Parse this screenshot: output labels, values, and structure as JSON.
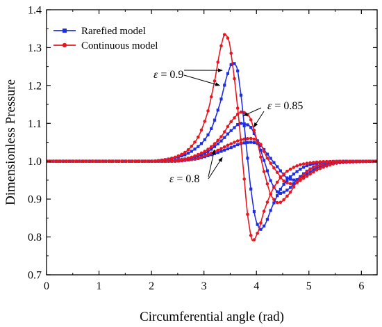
{
  "chart_data": {
    "type": "line",
    "xlabel": "Circumferential angle (rad)",
    "ylabel": "Dimensionless Pressure",
    "xlim": [
      0,
      6.3
    ],
    "ylim": [
      0.7,
      1.4
    ],
    "xticks": [
      "0",
      "1",
      "2",
      "3",
      "4",
      "5",
      "6"
    ],
    "yticks": [
      "0.7",
      "0.8",
      "0.9",
      "1.0",
      "1.1",
      "1.2",
      "1.3",
      "1.4"
    ],
    "grid": false,
    "legend": {
      "position": "top-left",
      "entries": [
        {
          "label": "Rarefied model",
          "color": "#1f2ee0",
          "marker": "square"
        },
        {
          "label": "Continuous model",
          "color": "#e8161e",
          "marker": "circle"
        }
      ]
    },
    "annotations": [
      {
        "symbol": "ε",
        "text": " = 0.9",
        "points_to": [
          [
            3.35,
            1.24
          ],
          [
            3.3,
            1.2
          ]
        ]
      },
      {
        "symbol": "ε",
        "text": " = 0.85",
        "points_to": [
          [
            3.75,
            1.12
          ],
          [
            3.95,
            1.09
          ]
        ]
      },
      {
        "symbol": "ε",
        "text": " = 0.8",
        "points_to": [
          [
            3.2,
            1.03
          ],
          [
            3.35,
            1.01
          ]
        ]
      }
    ],
    "series": [
      {
        "name": "Rarefied model",
        "group": "ε = 0.9",
        "color": "#1f2ee0",
        "marker": "square",
        "points": [
          [
            0,
            1.0
          ],
          [
            2.0,
            1.0
          ],
          [
            2.3,
            1.005
          ],
          [
            2.6,
            1.015
          ],
          [
            2.9,
            1.04
          ],
          [
            3.1,
            1.075
          ],
          [
            3.3,
            1.15
          ],
          [
            3.45,
            1.23
          ],
          [
            3.55,
            1.26
          ],
          [
            3.62,
            1.25
          ],
          [
            3.7,
            1.18
          ],
          [
            3.8,
            1.05
          ],
          [
            3.9,
            0.92
          ],
          [
            4.0,
            0.84
          ],
          [
            4.08,
            0.82
          ],
          [
            4.15,
            0.83
          ],
          [
            4.3,
            0.88
          ],
          [
            4.5,
            0.935
          ],
          [
            4.7,
            0.965
          ],
          [
            5.0,
            0.99
          ],
          [
            5.3,
            0.998
          ],
          [
            5.6,
            1.0
          ],
          [
            6.3,
            1.0
          ]
        ]
      },
      {
        "name": "Continuous model",
        "group": "ε = 0.9",
        "color": "#e8161e",
        "marker": "circle",
        "points": [
          [
            0,
            1.0
          ],
          [
            2.0,
            1.0
          ],
          [
            2.3,
            1.005
          ],
          [
            2.6,
            1.02
          ],
          [
            2.85,
            1.055
          ],
          [
            3.05,
            1.12
          ],
          [
            3.2,
            1.21
          ],
          [
            3.32,
            1.3
          ],
          [
            3.4,
            1.335
          ],
          [
            3.47,
            1.32
          ],
          [
            3.55,
            1.25
          ],
          [
            3.65,
            1.13
          ],
          [
            3.75,
            0.98
          ],
          [
            3.85,
            0.84
          ],
          [
            3.93,
            0.79
          ],
          [
            4.02,
            0.81
          ],
          [
            4.15,
            0.87
          ],
          [
            4.35,
            0.935
          ],
          [
            4.6,
            0.975
          ],
          [
            4.9,
            0.993
          ],
          [
            5.3,
            0.999
          ],
          [
            6.3,
            1.0
          ]
        ]
      },
      {
        "name": "Rarefied model",
        "group": "ε = 0.85",
        "color": "#1f2ee0",
        "marker": "square",
        "points": [
          [
            0,
            1.0
          ],
          [
            2.2,
            1.0
          ],
          [
            2.6,
            1.005
          ],
          [
            3.0,
            1.02
          ],
          [
            3.3,
            1.05
          ],
          [
            3.55,
            1.085
          ],
          [
            3.7,
            1.1
          ],
          [
            3.85,
            1.095
          ],
          [
            4.0,
            1.06
          ],
          [
            4.15,
            1.0
          ],
          [
            4.3,
            0.94
          ],
          [
            4.45,
            0.915
          ],
          [
            4.6,
            0.925
          ],
          [
            4.8,
            0.955
          ],
          [
            5.1,
            0.985
          ],
          [
            5.5,
            0.998
          ],
          [
            6.3,
            1.0
          ]
        ]
      },
      {
        "name": "Continuous model",
        "group": "ε = 0.85",
        "color": "#e8161e",
        "marker": "circle",
        "points": [
          [
            0,
            1.0
          ],
          [
            2.2,
            1.0
          ],
          [
            2.6,
            1.005
          ],
          [
            3.0,
            1.025
          ],
          [
            3.3,
            1.06
          ],
          [
            3.55,
            1.11
          ],
          [
            3.72,
            1.13
          ],
          [
            3.85,
            1.12
          ],
          [
            4.0,
            1.06
          ],
          [
            4.15,
            0.97
          ],
          [
            4.3,
            0.905
          ],
          [
            4.42,
            0.89
          ],
          [
            4.6,
            0.91
          ],
          [
            4.8,
            0.95
          ],
          [
            5.1,
            0.985
          ],
          [
            5.5,
            0.998
          ],
          [
            6.3,
            1.0
          ]
        ]
      },
      {
        "name": "Rarefied model",
        "group": "ε = 0.8",
        "color": "#1f2ee0",
        "marker": "square",
        "points": [
          [
            0,
            1.0
          ],
          [
            2.4,
            1.0
          ],
          [
            2.8,
            1.005
          ],
          [
            3.2,
            1.02
          ],
          [
            3.5,
            1.035
          ],
          [
            3.75,
            1.048
          ],
          [
            3.9,
            1.05
          ],
          [
            4.05,
            1.045
          ],
          [
            4.2,
            1.02
          ],
          [
            4.4,
            0.985
          ],
          [
            4.6,
            0.955
          ],
          [
            4.75,
            0.95
          ],
          [
            4.95,
            0.965
          ],
          [
            5.2,
            0.985
          ],
          [
            5.6,
            0.998
          ],
          [
            6.3,
            1.0
          ]
        ]
      },
      {
        "name": "Continuous model",
        "group": "ε = 0.8",
        "color": "#e8161e",
        "marker": "circle",
        "points": [
          [
            0,
            1.0
          ],
          [
            2.4,
            1.0
          ],
          [
            2.8,
            1.006
          ],
          [
            3.2,
            1.025
          ],
          [
            3.5,
            1.045
          ],
          [
            3.75,
            1.058
          ],
          [
            3.9,
            1.06
          ],
          [
            4.05,
            1.05
          ],
          [
            4.2,
            1.01
          ],
          [
            4.4,
            0.97
          ],
          [
            4.55,
            0.945
          ],
          [
            4.7,
            0.94
          ],
          [
            4.9,
            0.955
          ],
          [
            5.2,
            0.98
          ],
          [
            5.6,
            0.996
          ],
          [
            6.3,
            1.0
          ]
        ]
      }
    ]
  }
}
